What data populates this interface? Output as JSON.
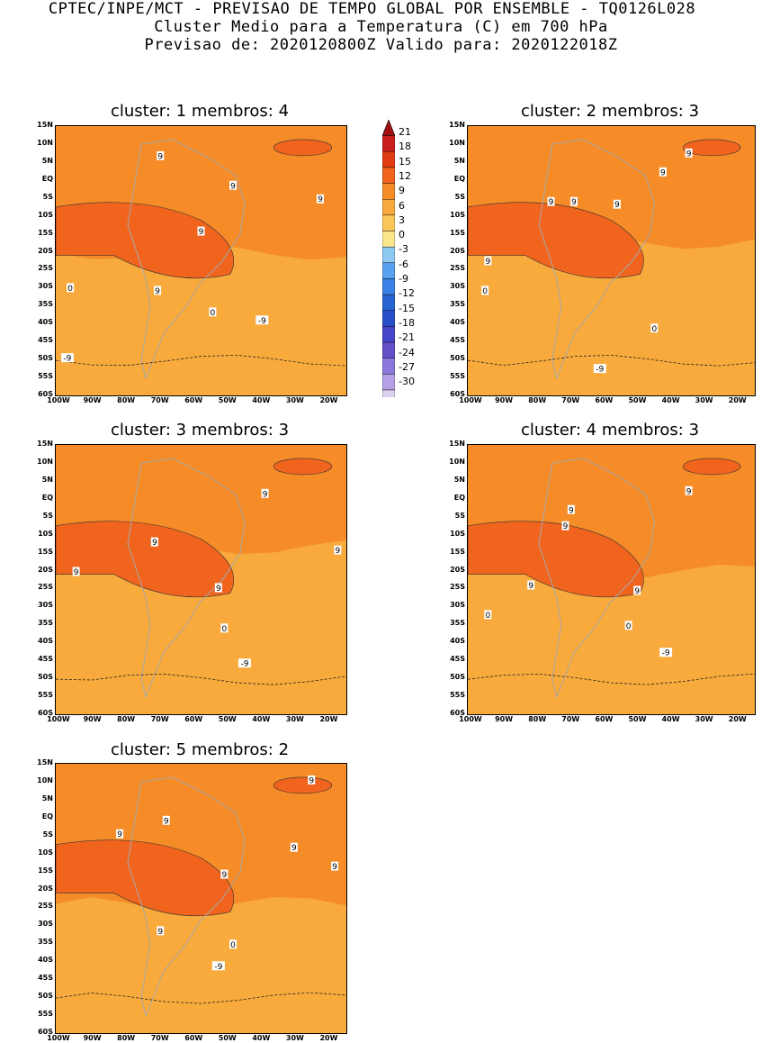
{
  "header": {
    "line1": "CPTEC/INPE/MCT - PREVISAO DE TEMPO GLOBAL POR ENSEMBLE - TQ0126L028",
    "line2": "Cluster Medio para a Temperatura (C) em 700 hPa",
    "line3": "Previsao de: 2020120800Z   Valido para: 2020122018Z"
  },
  "axes": {
    "lat": [
      "15N",
      "10N",
      "5N",
      "EQ",
      "5S",
      "10S",
      "15S",
      "20S",
      "25S",
      "30S",
      "35S",
      "40S",
      "45S",
      "50S",
      "55S",
      "60S"
    ],
    "lon": [
      "100W",
      "90W",
      "80W",
      "70W",
      "60W",
      "50W",
      "40W",
      "30W",
      "20W"
    ]
  },
  "panels": [
    {
      "title": "cluster: 1   membros: 4",
      "labels": [
        "9",
        "9",
        "9",
        "9",
        "9",
        "0",
        "-9",
        "0",
        "-9"
      ]
    },
    {
      "title": "cluster: 2   membros: 3",
      "labels": [
        "9",
        "9",
        "9",
        "9",
        "9",
        "9",
        "0",
        "0",
        "-9"
      ]
    },
    {
      "title": "cluster: 3   membros: 3",
      "labels": [
        "9",
        "9",
        "9",
        "9",
        "9",
        "0",
        "-9"
      ]
    },
    {
      "title": "cluster: 4   membros: 3",
      "labels": [
        "9",
        "9",
        "9",
        "9",
        "9",
        "0",
        "0",
        "-9"
      ]
    },
    {
      "title": "cluster: 5   membros: 2",
      "labels": [
        "9",
        "9",
        "9",
        "9",
        "9",
        "9",
        "9",
        "0",
        "-9"
      ]
    }
  ],
  "colorbar": {
    "levels": [
      "21",
      "18",
      "15",
      "12",
      "9",
      "6",
      "3",
      "0",
      "-3",
      "-6",
      "-9",
      "-12",
      "-15",
      "-18",
      "-21",
      "-24",
      "-27",
      "-30"
    ],
    "colors": [
      "#a01010",
      "#c81e1e",
      "#e03c14",
      "#f0641e",
      "#f58c28",
      "#f8aa3c",
      "#fac85a",
      "#fbe68c",
      "#8cc8f0",
      "#5aa0f0",
      "#3c82e6",
      "#2864d2",
      "#2850c8",
      "#4646c8",
      "#6450c8",
      "#8c78dc",
      "#b4a0e6",
      "#dcd2f0",
      "#f5f0fa"
    ]
  }
}
